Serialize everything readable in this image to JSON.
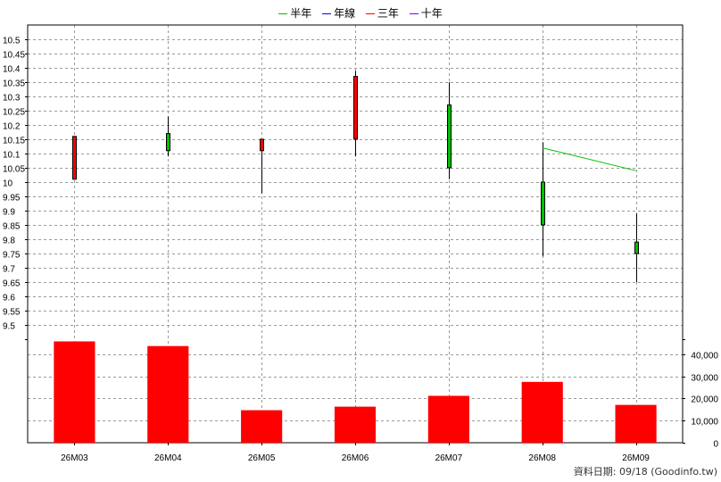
{
  "legend": [
    {
      "label": "半年",
      "color": "#00c000"
    },
    {
      "label": "年線",
      "color": "#0000ff"
    },
    {
      "label": "三年",
      "color": "#ff0000"
    },
    {
      "label": "十年",
      "color": "#8000ff"
    }
  ],
  "footer": {
    "date_text": "資料日期: 09/18",
    "source_text": "(Goodinfo.tw)"
  },
  "chart_data": {
    "type": "candlestick+bar",
    "categories": [
      "26M03",
      "26M04",
      "26M05",
      "26M06",
      "26M07",
      "26M08",
      "26M09"
    ],
    "price_axis": {
      "ylim": [
        9.45,
        10.55
      ],
      "ticks": [
        "9.5",
        "9.55",
        "9.6",
        "9.65",
        "9.7",
        "9.75",
        "9.8",
        "9.85",
        "9.9",
        "9.95",
        "10",
        "10.05",
        "10.1",
        "10.15",
        "10.2",
        "10.25",
        "10.3",
        "10.35",
        "10.4",
        "10.45",
        "10.5"
      ]
    },
    "candles": [
      {
        "open": 10.01,
        "high": 10.16,
        "low": 10.01,
        "close": 10.16,
        "direction": "up",
        "color": "#ff0000"
      },
      {
        "open": 10.17,
        "high": 10.23,
        "low": 10.09,
        "close": 10.11,
        "direction": "down",
        "color": "#00c000"
      },
      {
        "open": 10.11,
        "high": 10.15,
        "low": 9.96,
        "close": 10.15,
        "direction": "up",
        "color": "#ff0000"
      },
      {
        "open": 10.15,
        "high": 10.39,
        "low": 10.09,
        "close": 10.37,
        "direction": "up",
        "color": "#ff0000"
      },
      {
        "open": 10.27,
        "high": 10.35,
        "low": 10.01,
        "close": 10.05,
        "direction": "down",
        "color": "#00c000"
      },
      {
        "open": 10.0,
        "high": 10.14,
        "low": 9.74,
        "close": 9.85,
        "direction": "down",
        "color": "#00c000"
      },
      {
        "open": 9.79,
        "high": 9.89,
        "low": 9.65,
        "close": 9.75,
        "direction": "down",
        "color": "#00c000"
      }
    ],
    "half_year_line": {
      "name": "半年",
      "color": "#00c000",
      "points": [
        {
          "x": "26M08",
          "y": 10.12
        },
        {
          "x": "26M09",
          "y": 10.04
        }
      ]
    },
    "volume_axis": {
      "ylim": [
        0,
        46000
      ],
      "ticks": [
        "0",
        "10,000",
        "20,000",
        "30,000",
        "40,000"
      ]
    },
    "volumes": [
      45800,
      43700,
      14700,
      16300,
      21200,
      27500,
      17100
    ],
    "volume_color": "#ff0000",
    "grid": true
  }
}
